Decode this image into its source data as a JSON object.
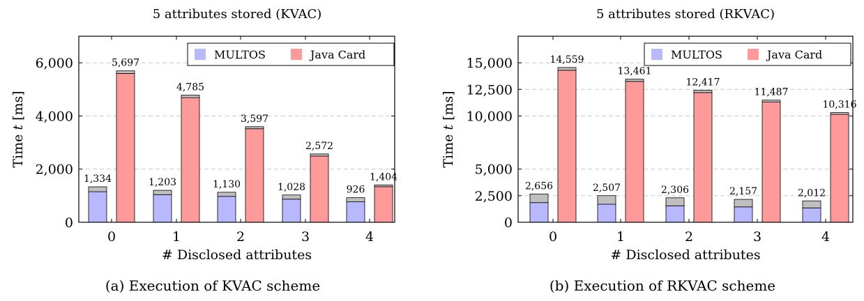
{
  "figure": {
    "caption_a": "(a) Execution of KVAC scheme",
    "caption_b": "(b) Execution of RKVAC scheme"
  },
  "colors": {
    "multos": "#b8b8ff",
    "java_card": "#ff9a9a",
    "overhead": "#bfbfbf",
    "gridline": "#c8c8c8"
  },
  "chart_data": [
    {
      "type": "bar",
      "title": "5 attributes stored (KVAC)",
      "xlabel": "# Disclosed attributes",
      "ylabel_main": "Time ",
      "ylabel_var": "t",
      "ylabel_unit": " [ms]",
      "categories": [
        "0",
        "1",
        "2",
        "3",
        "4"
      ],
      "ylim": [
        0,
        7000
      ],
      "yticks": [
        0,
        2000,
        4000,
        6000
      ],
      "ytick_labels": [
        "0",
        "2,000",
        "4,000",
        "6,000"
      ],
      "grid": "horizontal dashed",
      "legend_position": "top-right",
      "stacked": true,
      "series": [
        {
          "name": "MULTOS",
          "color_key": "multos",
          "values": [
            1334,
            1203,
            1130,
            1028,
            926
          ],
          "labels": [
            "1,334",
            "1,203",
            "1,130",
            "1,028",
            "926"
          ],
          "base_values": [
            1150,
            1040,
            975,
            870,
            770
          ]
        },
        {
          "name": "Java Card",
          "color_key": "java_card",
          "values": [
            5697,
            4785,
            3597,
            2572,
            1404
          ],
          "labels": [
            "5,697",
            "4,785",
            "3,597",
            "2,572",
            "1,404"
          ],
          "base_values": [
            5600,
            4690,
            3520,
            2490,
            1340
          ]
        }
      ]
    },
    {
      "type": "bar",
      "title": "5 attributes stored (RKVAC)",
      "xlabel": "# Disclosed attributes",
      "ylabel_main": "Time ",
      "ylabel_var": "t",
      "ylabel_unit": " [ms]",
      "categories": [
        "0",
        "1",
        "2",
        "3",
        "4"
      ],
      "ylim": [
        0,
        17500
      ],
      "yticks": [
        0,
        2500,
        5000,
        10000,
        12500,
        15000
      ],
      "ytick_labels": [
        "0",
        "2,500",
        "5,000",
        "10,000",
        "12,500",
        "15,000"
      ],
      "grid": "horizontal dashed",
      "legend_position": "top-right",
      "stacked": true,
      "series": [
        {
          "name": "MULTOS",
          "color_key": "multos",
          "values": [
            2656,
            2507,
            2306,
            2157,
            2012
          ],
          "labels": [
            "2,656",
            "2,507",
            "2,306",
            "2,157",
            "2,012"
          ],
          "base_values": [
            1850,
            1700,
            1550,
            1450,
            1350
          ]
        },
        {
          "name": "Java Card",
          "color_key": "java_card",
          "values": [
            14559,
            13461,
            12417,
            11487,
            10316
          ],
          "labels": [
            "14,559",
            "13,461",
            "12,417",
            "11,487",
            "10,316"
          ],
          "base_values": [
            14300,
            13250,
            12200,
            11300,
            10150
          ]
        }
      ]
    }
  ]
}
